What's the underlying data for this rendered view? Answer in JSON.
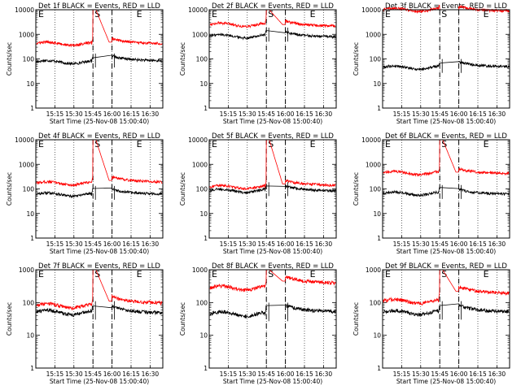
{
  "figure": {
    "xlabel": "Start Time (25-Nov-08 15:00:40)",
    "ylabel": "Counts/sec",
    "x_ticks": [
      "15:15",
      "15:30",
      "15:45",
      "16:00",
      "16:15",
      "16:30"
    ],
    "y_ticks": [
      "1",
      "10",
      "100",
      "1000",
      "10000"
    ],
    "colors": {
      "events": "#000000",
      "lld": "#ff0000"
    },
    "marker_labels": [
      "E",
      "S",
      "E"
    ]
  },
  "chart_data": [
    {
      "type": "line",
      "title": "Det 1f BLACK = Events, RED = LLD",
      "ylim": [
        1,
        10000
      ],
      "xlim": [
        "15:00",
        "16:40"
      ],
      "log_y": true,
      "grid": "dotted-x",
      "markers": [
        "E",
        "S",
        "E"
      ],
      "marker_times": [
        "15:45",
        "16:00"
      ],
      "series": [
        {
          "name": "Events",
          "baseline_pre": 75,
          "baseline_post": 95,
          "peak": 150
        },
        {
          "name": "LLD",
          "baseline_pre": 420,
          "baseline_post": 480,
          "peak": 10000
        }
      ]
    },
    {
      "type": "line",
      "title": "Det 2f BLACK = Events, RED = LLD",
      "ylim": [
        1,
        10000
      ],
      "xlim": [
        "15:00",
        "16:40"
      ],
      "log_y": true,
      "grid": "dotted-x",
      "markers": [
        "E",
        "S",
        "E"
      ],
      "marker_times": [
        "15:45",
        "16:00"
      ],
      "series": [
        {
          "name": "Events",
          "baseline_pre": 850,
          "baseline_post": 900,
          "peak": 1200
        },
        {
          "name": "LLD",
          "baseline_pre": 2500,
          "baseline_post": 2500,
          "peak": 10000
        }
      ]
    },
    {
      "type": "line",
      "title": "Det 3f BLACK = Events, RED = LLD",
      "ylim": [
        1,
        10000
      ],
      "xlim": [
        "15:00",
        "16:40"
      ],
      "log_y": true,
      "grid": "dotted-x",
      "markers": [
        "E",
        "S",
        "E"
      ],
      "marker_times": [
        "15:45",
        "16:00"
      ],
      "series": [
        {
          "name": "Events",
          "baseline_pre": 45,
          "baseline_post": 55,
          "peak": 80
        },
        {
          "name": "LLD",
          "baseline_pre": 10000,
          "baseline_post": 10000,
          "peak": 10000
        }
      ]
    },
    {
      "type": "line",
      "title": "Det 4f BLACK = Events, RED = LLD",
      "ylim": [
        1,
        10000
      ],
      "xlim": [
        "15:00",
        "16:40"
      ],
      "log_y": true,
      "grid": "dotted-x",
      "markers": [
        "E",
        "S",
        "E"
      ],
      "marker_times": [
        "15:45",
        "16:00"
      ],
      "series": [
        {
          "name": "Events",
          "baseline_pre": 60,
          "baseline_post": 70,
          "peak": 120
        },
        {
          "name": "LLD",
          "baseline_pre": 170,
          "baseline_post": 220,
          "peak": 10000
        }
      ]
    },
    {
      "type": "line",
      "title": "Det 5f BLACK = Events, RED = LLD",
      "ylim": [
        1,
        10000
      ],
      "xlim": [
        "15:00",
        "16:40"
      ],
      "log_y": true,
      "grid": "dotted-x",
      "markers": [
        "E",
        "S",
        "E"
      ],
      "marker_times": [
        "15:45",
        "16:00"
      ],
      "series": [
        {
          "name": "Events",
          "baseline_pre": 85,
          "baseline_post": 95,
          "peak": 150
        },
        {
          "name": "LLD",
          "baseline_pre": 120,
          "baseline_post": 160,
          "peak": 10000
        }
      ]
    },
    {
      "type": "line",
      "title": "Det 6f BLACK = Events, RED = LLD",
      "ylim": [
        1,
        10000
      ],
      "xlim": [
        "15:00",
        "16:40"
      ],
      "log_y": true,
      "grid": "dotted-x",
      "markers": [
        "E",
        "S",
        "E"
      ],
      "marker_times": [
        "15:45",
        "16:00"
      ],
      "series": [
        {
          "name": "Events",
          "baseline_pre": 65,
          "baseline_post": 70,
          "peak": 110
        },
        {
          "name": "LLD",
          "baseline_pre": 450,
          "baseline_post": 480,
          "peak": 10000
        }
      ]
    },
    {
      "type": "line",
      "title": "Det 7f BLACK = Events, RED = LLD",
      "ylim": [
        1,
        1000
      ],
      "xlim": [
        "15:00",
        "16:40"
      ],
      "log_y": true,
      "grid": "dotted-x",
      "markers": [
        "E",
        "S",
        "E"
      ],
      "marker_times": [
        "15:45",
        "16:00"
      ],
      "series": [
        {
          "name": "Events",
          "baseline_pre": 50,
          "baseline_post": 55,
          "peak": 90
        },
        {
          "name": "LLD",
          "baseline_pre": 80,
          "baseline_post": 110,
          "peak": 1000
        }
      ]
    },
    {
      "type": "line",
      "title": "Det 8f BLACK = Events, RED = LLD",
      "ylim": [
        1,
        1000
      ],
      "xlim": [
        "15:00",
        "16:40"
      ],
      "log_y": true,
      "grid": "dotted-x",
      "markers": [
        "E",
        "S",
        "E"
      ],
      "marker_times": [
        "15:45",
        "16:00"
      ],
      "series": [
        {
          "name": "Events",
          "baseline_pre": 45,
          "baseline_post": 60,
          "peak": 100
        },
        {
          "name": "LLD",
          "baseline_pre": 280,
          "baseline_post": 450,
          "peak": 1000
        }
      ]
    },
    {
      "type": "line",
      "title": "Det 9f BLACK = Events, RED = LLD",
      "ylim": [
        1,
        1000
      ],
      "xlim": [
        "15:00",
        "16:40"
      ],
      "log_y": true,
      "grid": "dotted-x",
      "markers": [
        "E",
        "S",
        "E"
      ],
      "marker_times": [
        "15:45",
        "16:00"
      ],
      "series": [
        {
          "name": "Events",
          "baseline_pre": 50,
          "baseline_post": 60,
          "peak": 90
        },
        {
          "name": "LLD",
          "baseline_pre": 110,
          "baseline_post": 220,
          "peak": 1000
        }
      ]
    }
  ]
}
